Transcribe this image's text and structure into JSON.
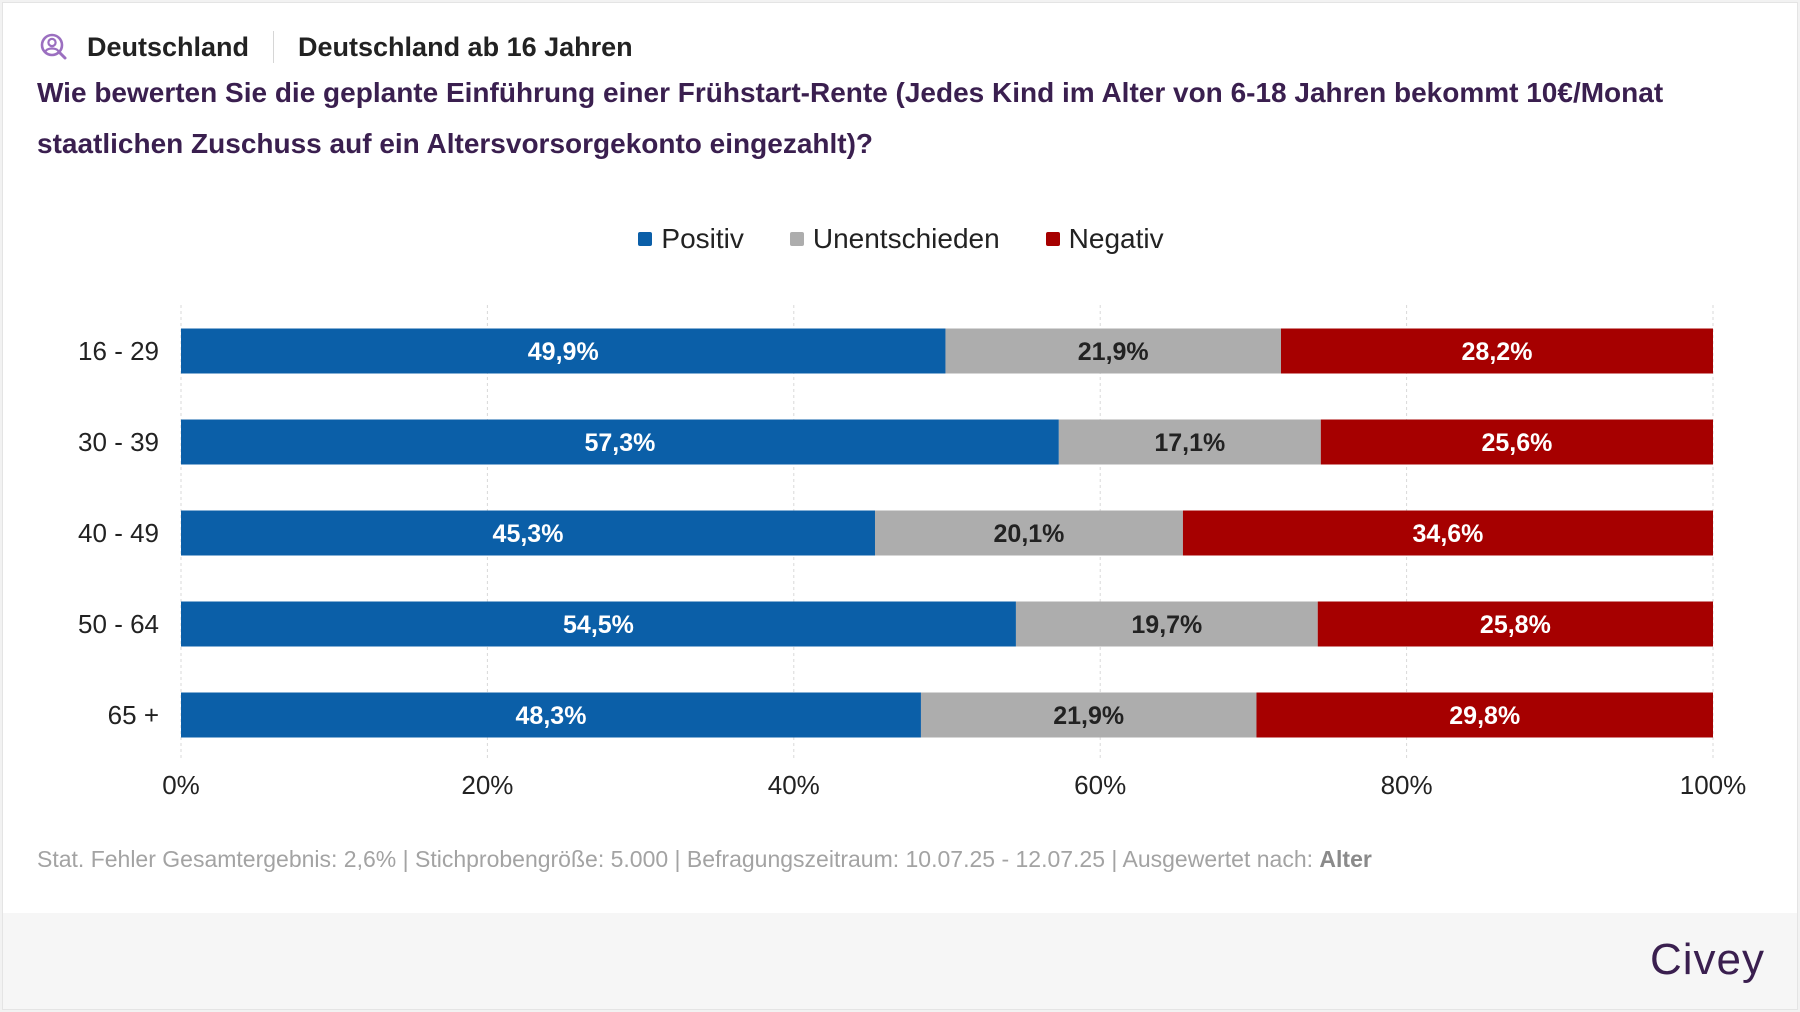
{
  "header": {
    "country": "Deutschland",
    "population": "Deutschland ab 16 Jahren",
    "question": "Wie bewerten Sie die geplante Einführung einer Frühstart-Rente (Jedes Kind im Alter von 6-18 Jahren bekommt 10€/Monat staatlichen Zuschuss auf ein Altersvorsorgekonto eingezahlt)?"
  },
  "legend": [
    {
      "label": "Positiv",
      "color": "#0b5fa8"
    },
    {
      "label": "Unentschieden",
      "color": "#adadad"
    },
    {
      "label": "Negativ",
      "color": "#a60000"
    }
  ],
  "chart_data": {
    "type": "bar",
    "orientation": "horizontal",
    "stacked": true,
    "categories": [
      "16 - 29",
      "30 - 39",
      "40 - 49",
      "50 - 64",
      "65 +"
    ],
    "series": [
      {
        "name": "Positiv",
        "color": "#0b5fa8",
        "values": [
          49.9,
          57.3,
          45.3,
          54.5,
          48.3
        ],
        "labels": [
          "49,9%",
          "57,3%",
          "45,3%",
          "54,5%",
          "48,3%"
        ]
      },
      {
        "name": "Unentschieden",
        "color": "#adadad",
        "values": [
          21.9,
          17.1,
          20.1,
          19.7,
          21.9
        ],
        "labels": [
          "21,9%",
          "17,1%",
          "20,1%",
          "19,7%",
          "21,9%"
        ]
      },
      {
        "name": "Negativ",
        "color": "#a60000",
        "values": [
          28.2,
          25.6,
          34.6,
          25.8,
          29.8
        ],
        "labels": [
          "28,2%",
          "25,6%",
          "34,6%",
          "25,8%",
          "29,8%"
        ]
      }
    ],
    "xlim": [
      0,
      100
    ],
    "xticks": [
      0,
      20,
      40,
      60,
      80,
      100
    ],
    "xtick_labels": [
      "0%",
      "20%",
      "40%",
      "60%",
      "80%",
      "100%"
    ],
    "grid": "vertical dashed",
    "legend_position": "top-center"
  },
  "footer": {
    "note_prefix": "Stat. Fehler Gesamtergebnis: 2,6% | Stichprobengröße: 5.000 | Befragungszeitraum: 10.07.25 - 12.07.25 | Ausgewertet nach: ",
    "note_dimension": "Alter",
    "brand": "Civey"
  }
}
